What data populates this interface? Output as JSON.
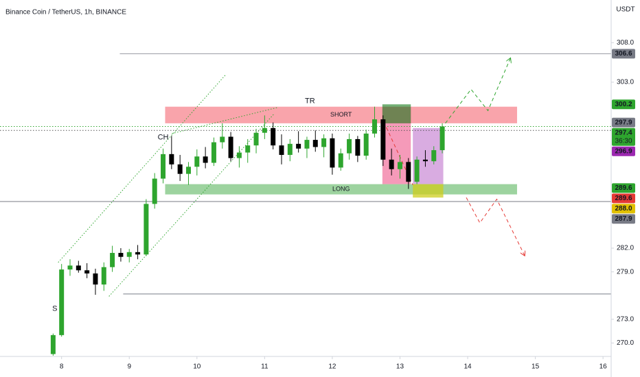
{
  "chart_data": {
    "type": "candlestick",
    "title": "Binance Coin / TetherUS, 1h, BINANCE",
    "y_axis_label": "USDT",
    "xlim": [
      7.09,
      16.1
    ],
    "xticks": [
      8,
      9,
      10,
      11,
      12,
      13,
      14,
      15,
      16
    ],
    "ylim": [
      268.3,
      313.4
    ],
    "yticks": [
      {
        "value": 270,
        "label": "270.0"
      },
      {
        "value": 273,
        "label": "273.0"
      },
      {
        "value": 279,
        "label": "279.0"
      },
      {
        "value": 282,
        "label": "282.0"
      },
      {
        "value": 303,
        "label": "303.0"
      },
      {
        "value": 308,
        "label": "308.0"
      }
    ],
    "up_color": "#2ea52e",
    "down_color": "#000000",
    "x": [
      7.875,
      8.0,
      8.125,
      8.25,
      8.375,
      8.5,
      8.625,
      8.75,
      8.875,
      9.0,
      9.125,
      9.25,
      9.375,
      9.5,
      9.625,
      9.75,
      9.875,
      10.0,
      10.125,
      10.25,
      10.375,
      10.5,
      10.625,
      10.75,
      10.875,
      11.0,
      11.125,
      11.25,
      11.375,
      11.5,
      11.625,
      11.75,
      11.875,
      12.0,
      12.125,
      12.25,
      12.375,
      12.5,
      12.625,
      12.75,
      12.875,
      13.0,
      13.125,
      13.25,
      13.375,
      13.5,
      13.625
    ],
    "open": [
      268.6,
      271.0,
      279.3,
      279.8,
      279.2,
      278.8,
      277.4,
      279.6,
      281.4,
      280.9,
      281.5,
      281.2,
      287.6,
      290.8,
      293.9,
      292.6,
      291.4,
      292.3,
      293.6,
      292.8,
      295.4,
      296.1,
      293.4,
      294.1,
      295.0,
      296.6,
      297.2,
      295.0,
      293.8,
      295.2,
      294.6,
      295.7,
      294.8,
      295.9,
      292.2,
      294.0,
      295.8,
      293.7,
      296.5,
      298.3,
      293.2,
      292.0,
      292.9,
      290.4,
      293.2,
      293.0,
      294.4
    ],
    "high": [
      271.2,
      280.0,
      280.6,
      280.4,
      280.1,
      279.4,
      280.2,
      282.3,
      282.0,
      281.9,
      282.4,
      288.2,
      291.5,
      294.6,
      296.2,
      293.8,
      292.9,
      294.5,
      294.8,
      296.0,
      297.8,
      296.7,
      294.9,
      295.8,
      297.1,
      298.8,
      297.9,
      296.4,
      295.8,
      296.8,
      296.1,
      296.9,
      296.4,
      296.5,
      294.6,
      296.5,
      296.2,
      297.0,
      299.9,
      298.8,
      294.6,
      293.8,
      293.4,
      293.6,
      294.4,
      294.9,
      297.8
    ],
    "low": [
      268.4,
      270.8,
      278.5,
      278.9,
      278.2,
      276.1,
      276.6,
      279.0,
      280.3,
      280.2,
      280.6,
      281.0,
      287.0,
      290.2,
      292.0,
      290.5,
      290.0,
      291.2,
      292.1,
      292.4,
      294.6,
      293.0,
      292.2,
      292.8,
      294.0,
      295.8,
      294.5,
      292.6,
      293.0,
      294.1,
      293.4,
      294.2,
      293.5,
      291.3,
      291.8,
      293.2,
      292.9,
      293.2,
      296.0,
      292.4,
      291.2,
      290.8,
      289.5,
      290.1,
      292.3,
      292.6,
      294.0
    ],
    "close": [
      271.0,
      279.3,
      279.8,
      279.2,
      278.8,
      277.4,
      279.6,
      281.4,
      280.9,
      281.5,
      281.2,
      287.6,
      290.8,
      293.9,
      292.6,
      291.4,
      292.3,
      293.6,
      292.8,
      295.4,
      296.1,
      293.4,
      294.1,
      295.0,
      296.6,
      297.2,
      295.0,
      293.8,
      295.2,
      294.6,
      295.7,
      294.8,
      295.9,
      292.2,
      294.0,
      295.8,
      293.7,
      296.5,
      298.3,
      293.2,
      292.0,
      292.9,
      290.4,
      293.2,
      293.0,
      294.4,
      297.4
    ],
    "zones": [
      {
        "x": [
          9.53,
          14.73
        ],
        "y": [
          297.8,
          299.9
        ],
        "color": "rgba(242,54,69,0.45)",
        "label": "SHORT"
      },
      {
        "x": [
          9.53,
          14.73
        ],
        "y": [
          288.8,
          290.1
        ],
        "color": "rgba(76,175,80,0.55)",
        "label": "LONG"
      },
      {
        "x": [
          12.74,
          13.16
        ],
        "y": [
          290.1,
          299.9
        ],
        "color": "rgba(233,30,99,0.45)"
      },
      {
        "x": [
          12.74,
          13.16
        ],
        "y": [
          297.8,
          300.2
        ],
        "color": "rgba(56,142,60,0.7)"
      },
      {
        "x": [
          13.19,
          13.64
        ],
        "y": [
          290.1,
          297.2
        ],
        "color": "rgba(186,104,200,0.55)"
      },
      {
        "x": [
          13.19,
          13.64
        ],
        "y": [
          288.4,
          290.1
        ],
        "color": "rgba(205,205,30,0.75)"
      }
    ],
    "levels": [
      {
        "value": 306.6,
        "from": 8.86,
        "color": "#9598a1",
        "style": "solid"
      },
      {
        "value": 276.2,
        "from": 8.91,
        "color": "#787b86",
        "style": "solid"
      },
      {
        "value": 287.9,
        "from": 7.09,
        "color": "#787b86",
        "style": "solid"
      },
      {
        "value": 297.4,
        "from": 7.09,
        "color": "#2ea52e",
        "style": "dotted"
      },
      {
        "value": 296.9,
        "from": 7.09,
        "color": "#555555",
        "style": "dotted"
      }
    ],
    "trendlines": [
      {
        "points": [
          [
            7.95,
            280.2
          ],
          [
            10.43,
            304.0
          ]
        ],
        "color": "#2ea52e",
        "style": "dotted"
      },
      {
        "points": [
          [
            8.7,
            275.9
          ],
          [
            11.14,
            299.0
          ]
        ],
        "color": "#2ea52e",
        "style": "dotted"
      },
      {
        "points": [
          [
            9.63,
            296.5
          ],
          [
            11.19,
            299.8
          ]
        ],
        "color": "#2ea52e",
        "style": "dotted"
      },
      {
        "points": [
          [
            12.76,
            298.0
          ],
          [
            13.19,
            290.0
          ]
        ],
        "color": "#e53935",
        "style": "dashed"
      },
      {
        "points": [
          [
            13.67,
            297.8
          ],
          [
            14.05,
            302.1
          ],
          [
            14.3,
            299.4
          ],
          [
            14.63,
            306.0
          ]
        ],
        "color": "#2ea52e",
        "style": "dashed",
        "arrow": true
      },
      {
        "points": [
          [
            13.98,
            288.4
          ],
          [
            14.18,
            285.2
          ],
          [
            14.43,
            288.2
          ],
          [
            14.84,
            281.1
          ]
        ],
        "color": "#e53935",
        "style": "dashed",
        "arrow": true
      }
    ],
    "annotations": [
      {
        "text": "TR",
        "x": 11.67,
        "y": 300.6
      },
      {
        "text": "CH",
        "x": 9.5,
        "y": 296.0
      },
      {
        "text": "S",
        "x": 7.9,
        "y": 274.3
      }
    ],
    "price_labels": [
      {
        "value": 306.6,
        "color": "#787b86"
      },
      {
        "value": 300.2,
        "color": "#2ea52e"
      },
      {
        "value": 297.9,
        "color": "#787b86"
      },
      {
        "value": 297.4,
        "color": "#2ea52e",
        "countdown": "36:30"
      },
      {
        "value": 296.9,
        "color": "#9c27b0"
      },
      {
        "value": 289.6,
        "color": "#2ea52e"
      },
      {
        "value": 289.6,
        "color": "#e53935"
      },
      {
        "value": 288.0,
        "label": "288.0",
        "color": "#e0c000"
      },
      {
        "value": 287.9,
        "color": "#787b86"
      }
    ]
  }
}
